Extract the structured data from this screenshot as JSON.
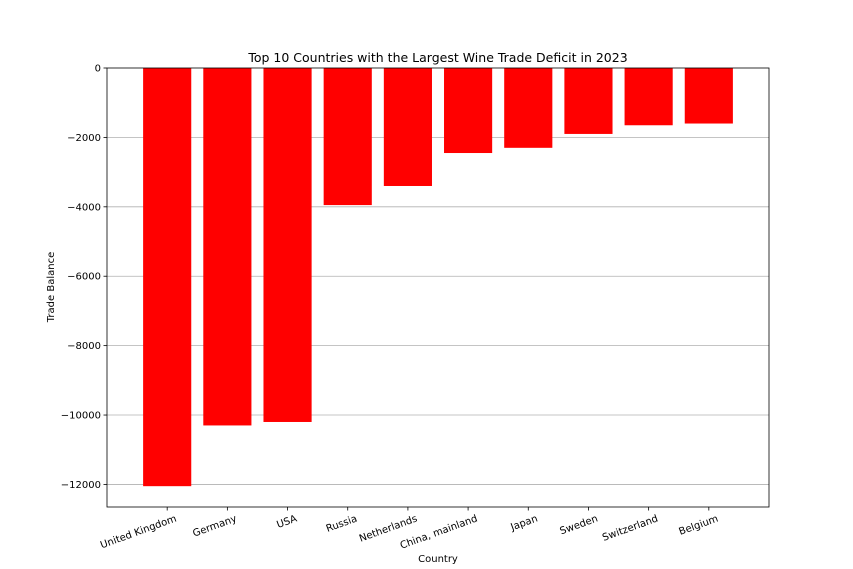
{
  "chart_data": {
    "type": "bar",
    "title": "Top 10 Countries with the Largest Wine Trade Deficit in 2023",
    "xlabel": "Country",
    "ylabel": "Trade Balance",
    "categories": [
      "United Kingdom",
      "Germany",
      "USA",
      "Russia",
      "Netherlands",
      "China, mainland",
      "Japan",
      "Sweden",
      "Switzerland",
      "Belgium"
    ],
    "values": [
      -12050,
      -10300,
      -10200,
      -3950,
      -3400,
      -2450,
      -2300,
      -1900,
      -1650,
      -1600
    ],
    "ylim": [
      -12650,
      0
    ],
    "yticks": [
      0,
      -2000,
      -4000,
      -6000,
      -8000,
      -10000,
      -12000
    ],
    "ytick_labels": [
      "0",
      "−2000",
      "−4000",
      "−6000",
      "−8000",
      "−10000",
      "−12000"
    ],
    "grid": "y",
    "bar_color": "#ff0000",
    "legend": false
  }
}
